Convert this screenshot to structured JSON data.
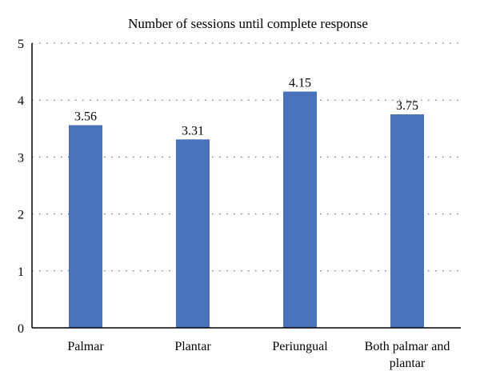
{
  "chart_data": {
    "type": "bar",
    "title": "Number of sessions until complete response",
    "categories": [
      "Palmar",
      "Plantar",
      "Periungual",
      "Both palmar and plantar"
    ],
    "values": [
      3.56,
      3.31,
      4.15,
      3.75
    ],
    "data_labels": [
      "3.56",
      "3.31",
      "4.15",
      "3.75"
    ],
    "ylim": [
      0,
      5
    ],
    "yticks": [
      "0",
      "1",
      "2",
      "3",
      "4",
      "5"
    ],
    "grid": true,
    "grid_style": "dotted",
    "bar_color": "#4a72bb",
    "legend": "none"
  }
}
